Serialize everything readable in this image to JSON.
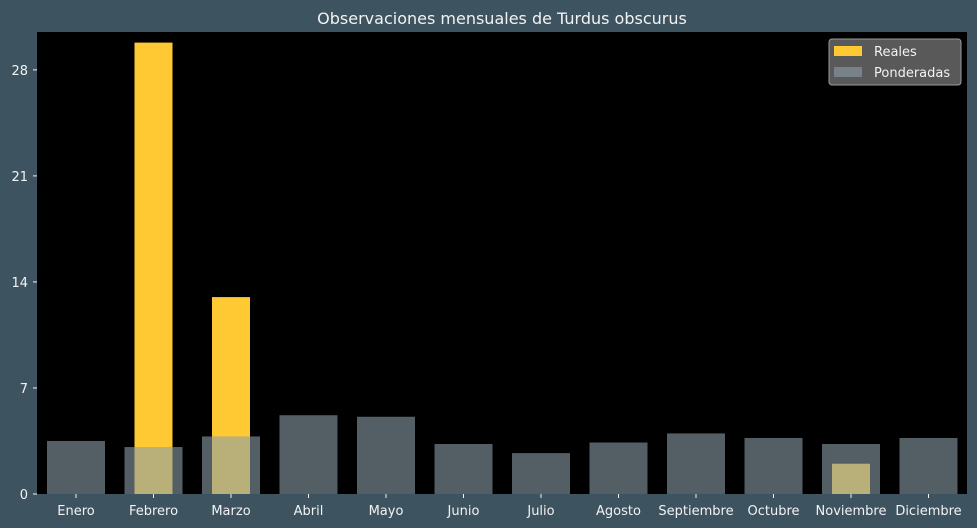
{
  "chart_data": {
    "type": "bar",
    "title": "Observaciones mensuales de Turdus obscurus",
    "xlabel": "",
    "ylabel": "",
    "categories": [
      "Enero",
      "Febrero",
      "Marzo",
      "Abril",
      "Mayo",
      "Junio",
      "Julio",
      "Agosto",
      "Septiembre",
      "Octubre",
      "Noviembre",
      "Diciembre"
    ],
    "series": [
      {
        "name": "Reales",
        "color": "#ffc933",
        "values": [
          0,
          29.8,
          13,
          0,
          0,
          0,
          0,
          0,
          0,
          0,
          2,
          0
        ]
      },
      {
        "name": "Ponderadas",
        "color": "#8a9fa6",
        "opacity": 0.6,
        "values": [
          3.5,
          3.1,
          3.8,
          5.2,
          5.1,
          3.3,
          2.7,
          3.4,
          4.0,
          3.7,
          3.3,
          3.7
        ]
      }
    ],
    "ylim": [
      0,
      30.5
    ],
    "yticks": [
      0,
      7,
      14,
      21,
      28
    ],
    "grid": false,
    "legend": "top-right"
  },
  "colors": {
    "figure_background": "#3d5360",
    "plot_background": "#000000",
    "text": "#f2f2f2",
    "legend_background": "#595959"
  }
}
